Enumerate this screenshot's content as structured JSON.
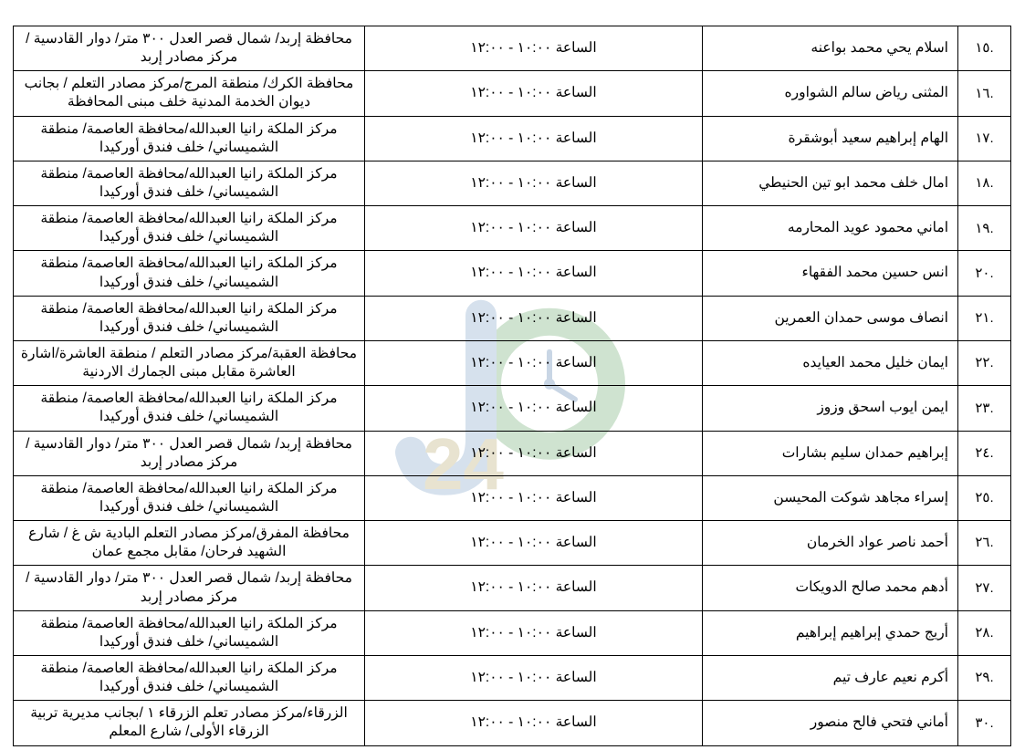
{
  "watermark": {
    "o_color": "#cfe3d0",
    "j_color": "#d6e1ed",
    "digit_color": "#e8e3d0"
  },
  "table": {
    "border_color": "#000000",
    "text_color": "#000000",
    "font_size": 15.5,
    "rows": [
      {
        "n": ".١٥",
        "name": "اسلام يحي محمد بواعنه",
        "time": "الساعة ١٠:٠٠ - ١٢:٠٠",
        "loc": "محافظة إربد/ شمال قصر العدل ٣٠٠ متر/ دوار القادسية / مركز مصادر إربد"
      },
      {
        "n": ".١٦",
        "name": "المثنى رياض سالم الشواوره",
        "time": "الساعة ١٠:٠٠ - ١٢:٠٠",
        "loc": "محافظة الكرك/ منطقة المرج/مركز مصادر التعلم / بجانب ديوان الخدمة المدنية خلف مبنى المحافظة"
      },
      {
        "n": ".١٧",
        "name": "الهام إبراهيم سعيد أبوشقرة",
        "time": "الساعة ١٠:٠٠ - ١٢:٠٠",
        "loc": "مركز الملكة رانيا العبدالله/محافظة العاصمة/ منطقة الشميساني/ خلف فندق أوركيدا"
      },
      {
        "n": ".١٨",
        "name": "امال خلف محمد ابو تين الحنيطي",
        "time": "الساعة ١٠:٠٠ - ١٢:٠٠",
        "loc": "مركز الملكة رانيا العبدالله/محافظة العاصمة/ منطقة الشميساني/ خلف فندق أوركيدا"
      },
      {
        "n": ".١٩",
        "name": "اماني محمود عويد المحارمه",
        "time": "الساعة ١٠:٠٠ - ١٢:٠٠",
        "loc": "مركز الملكة رانيا العبدالله/محافظة العاصمة/ منطقة الشميساني/ خلف فندق أوركيدا"
      },
      {
        "n": ".٢٠",
        "name": "انس حسين محمد الفقهاء",
        "time": "الساعة ١٠:٠٠ - ١٢:٠٠",
        "loc": "مركز الملكة رانيا العبدالله/محافظة العاصمة/ منطقة الشميساني/ خلف فندق أوركيدا"
      },
      {
        "n": ".٢١",
        "name": "انصاف موسى حمدان العمرين",
        "time": "الساعة ١٠:٠٠ - ١٢:٠٠",
        "loc": "مركز الملكة رانيا العبدالله/محافظة العاصمة/ منطقة الشميساني/ خلف فندق أوركيدا"
      },
      {
        "n": ".٢٢",
        "name": "ايمان خليل محمد العيايده",
        "time": "الساعة ١٠:٠٠ - ١٢:٠٠",
        "loc": "محافظة العقبة/مركز مصادر التعلم / منطقة العاشرة/اشارة العاشرة مقابل مبنى الجمارك الاردنية"
      },
      {
        "n": ".٢٣",
        "name": "ايمن ايوب اسحق وزوز",
        "time": "الساعة ١٠:٠٠ - ١٢:٠٠",
        "loc": "مركز الملكة رانيا العبدالله/محافظة العاصمة/ منطقة الشميساني/ خلف فندق أوركيدا"
      },
      {
        "n": ".٢٤",
        "name": "إبراهيم حمدان سليم بشارات",
        "time": "الساعة ١٠:٠٠ - ١٢:٠٠",
        "loc": "محافظة إربد/ شمال قصر العدل ٣٠٠ متر/ دوار القادسية / مركز مصادر إربد"
      },
      {
        "n": ".٢٥",
        "name": "إسراء مجاهد شوكت المحيسن",
        "time": "الساعة ١٠:٠٠ - ١٢:٠٠",
        "loc": "مركز الملكة رانيا العبدالله/محافظة العاصمة/ منطقة الشميساني/ خلف فندق أوركيدا"
      },
      {
        "n": ".٢٦",
        "name": "أحمد ناصر عواد الخرمان",
        "time": "الساعة ١٠:٠٠ - ١٢:٠٠",
        "loc": "محافظة المفرق/مركز مصادر التعلم البادية ش غ / شارع الشهيد فرحان/ مقابل مجمع عمان"
      },
      {
        "n": ".٢٧",
        "name": "أدهم محمد صالح الدويكات",
        "time": "الساعة ١٠:٠٠ - ١٢:٠٠",
        "loc": "محافظة إربد/ شمال قصر العدل ٣٠٠ متر/ دوار القادسية / مركز مصادر إربد"
      },
      {
        "n": ".٢٨",
        "name": "أريج حمدي إبراهيم إبراهيم",
        "time": "الساعة ١٠:٠٠ - ١٢:٠٠",
        "loc": "مركز الملكة رانيا العبدالله/محافظة العاصمة/ منطقة الشميساني/ خلف فندق أوركيدا"
      },
      {
        "n": ".٢٩",
        "name": "أكرم نعيم عارف تيم",
        "time": "الساعة ١٠:٠٠ - ١٢:٠٠",
        "loc": "مركز الملكة رانيا العبدالله/محافظة العاصمة/ منطقة الشميساني/ خلف فندق أوركيدا"
      },
      {
        "n": ".٣٠",
        "name": "أماني فتحي فالح منصور",
        "time": "الساعة ١٠:٠٠ - ١٢:٠٠",
        "loc": "الزرقاء/مركز مصادر تعلم الزرقاء ١ /بجانب مديرية تربية الزرقاء الأولى/ شارع المعلم"
      }
    ]
  }
}
